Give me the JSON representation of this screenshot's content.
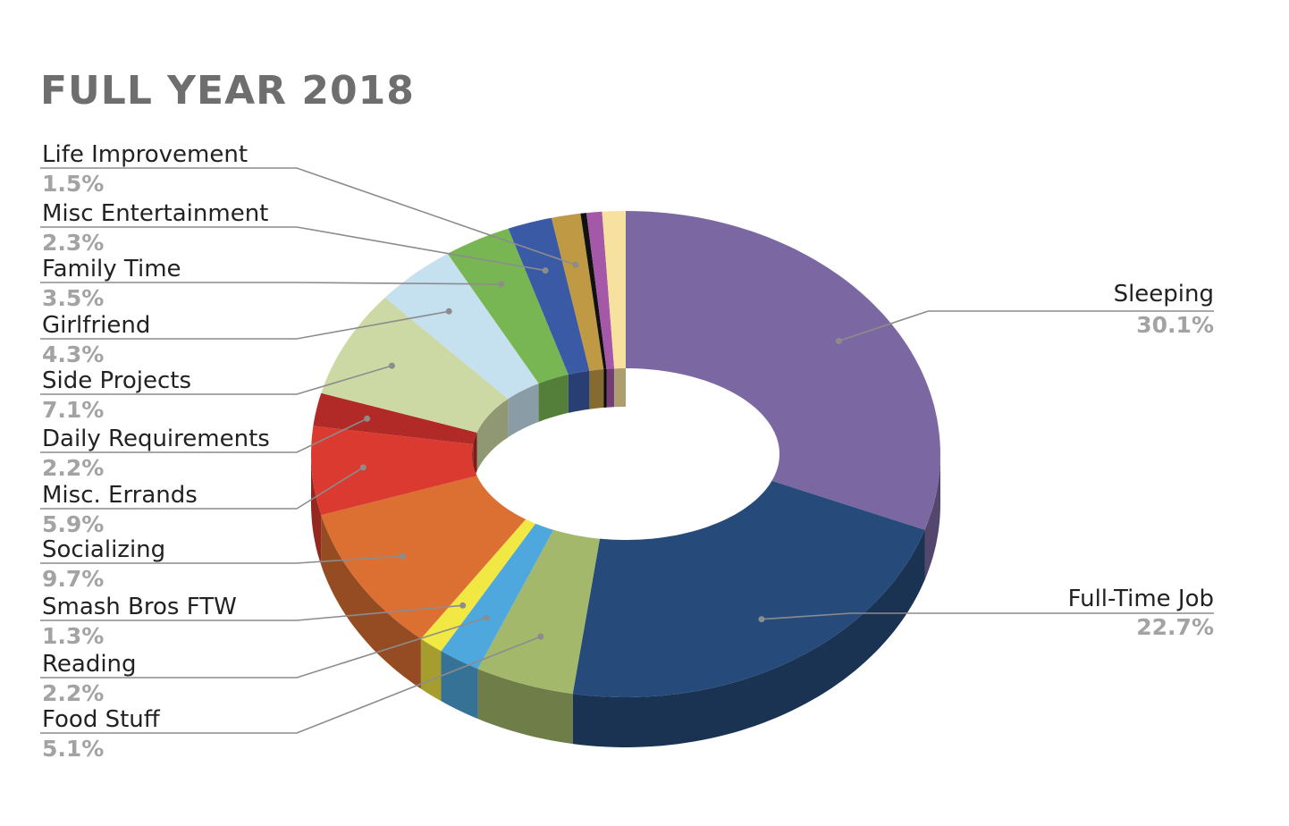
{
  "chart_data": {
    "type": "pie",
    "variant": "3d-donut",
    "title": "FULL YEAR 2018",
    "categories": [
      "Sleeping",
      "Full-Time Job",
      "Food Stuff",
      "Reading",
      "Smash Bros FTW",
      "Socializing",
      "Misc. Errands",
      "Daily Requirements",
      "Side Projects",
      "Girlfriend",
      "Family Time",
      "Misc Entertainment",
      "Life Improvement"
    ],
    "values": [
      30.1,
      22.7,
      5.1,
      2.2,
      1.3,
      9.7,
      5.9,
      2.2,
      7.1,
      4.3,
      3.5,
      2.3,
      1.5
    ],
    "labels": [
      {
        "name": "Sleeping",
        "pct": "30.1%"
      },
      {
        "name": "Full-Time Job",
        "pct": "22.7%"
      },
      {
        "name": "Food Stuff",
        "pct": "5.1%"
      },
      {
        "name": "Reading",
        "pct": "2.2%"
      },
      {
        "name": "Smash Bros FTW",
        "pct": "1.3%"
      },
      {
        "name": "Socializing",
        "pct": "9.7%"
      },
      {
        "name": "Misc. Errands",
        "pct": "5.9%"
      },
      {
        "name": "Daily Requirements",
        "pct": "2.2%"
      },
      {
        "name": "Side Projects",
        "pct": "7.1%"
      },
      {
        "name": "Girlfriend",
        "pct": "4.3%"
      },
      {
        "name": "Family Time",
        "pct": "3.5%"
      },
      {
        "name": "Misc Entertainment",
        "pct": "2.3%"
      },
      {
        "name": "Life Improvement",
        "pct": "1.5%"
      }
    ],
    "colors": [
      "#7b68a2",
      "#264b7a",
      "#a3b86a",
      "#4ea8dd",
      "#f2e844",
      "#dc7033",
      "#db3a30",
      "#b12a28",
      "#cdd9a4",
      "#c5e0ee",
      "#77b653",
      "#3a5aa5",
      "#c09945"
    ],
    "extra_thin_slices": [
      {
        "value": 0.3,
        "color": "#111111"
      },
      {
        "value": 0.8,
        "color": "#a558a8"
      },
      {
        "value": 1.2,
        "color": "#f7e19e"
      }
    ]
  }
}
